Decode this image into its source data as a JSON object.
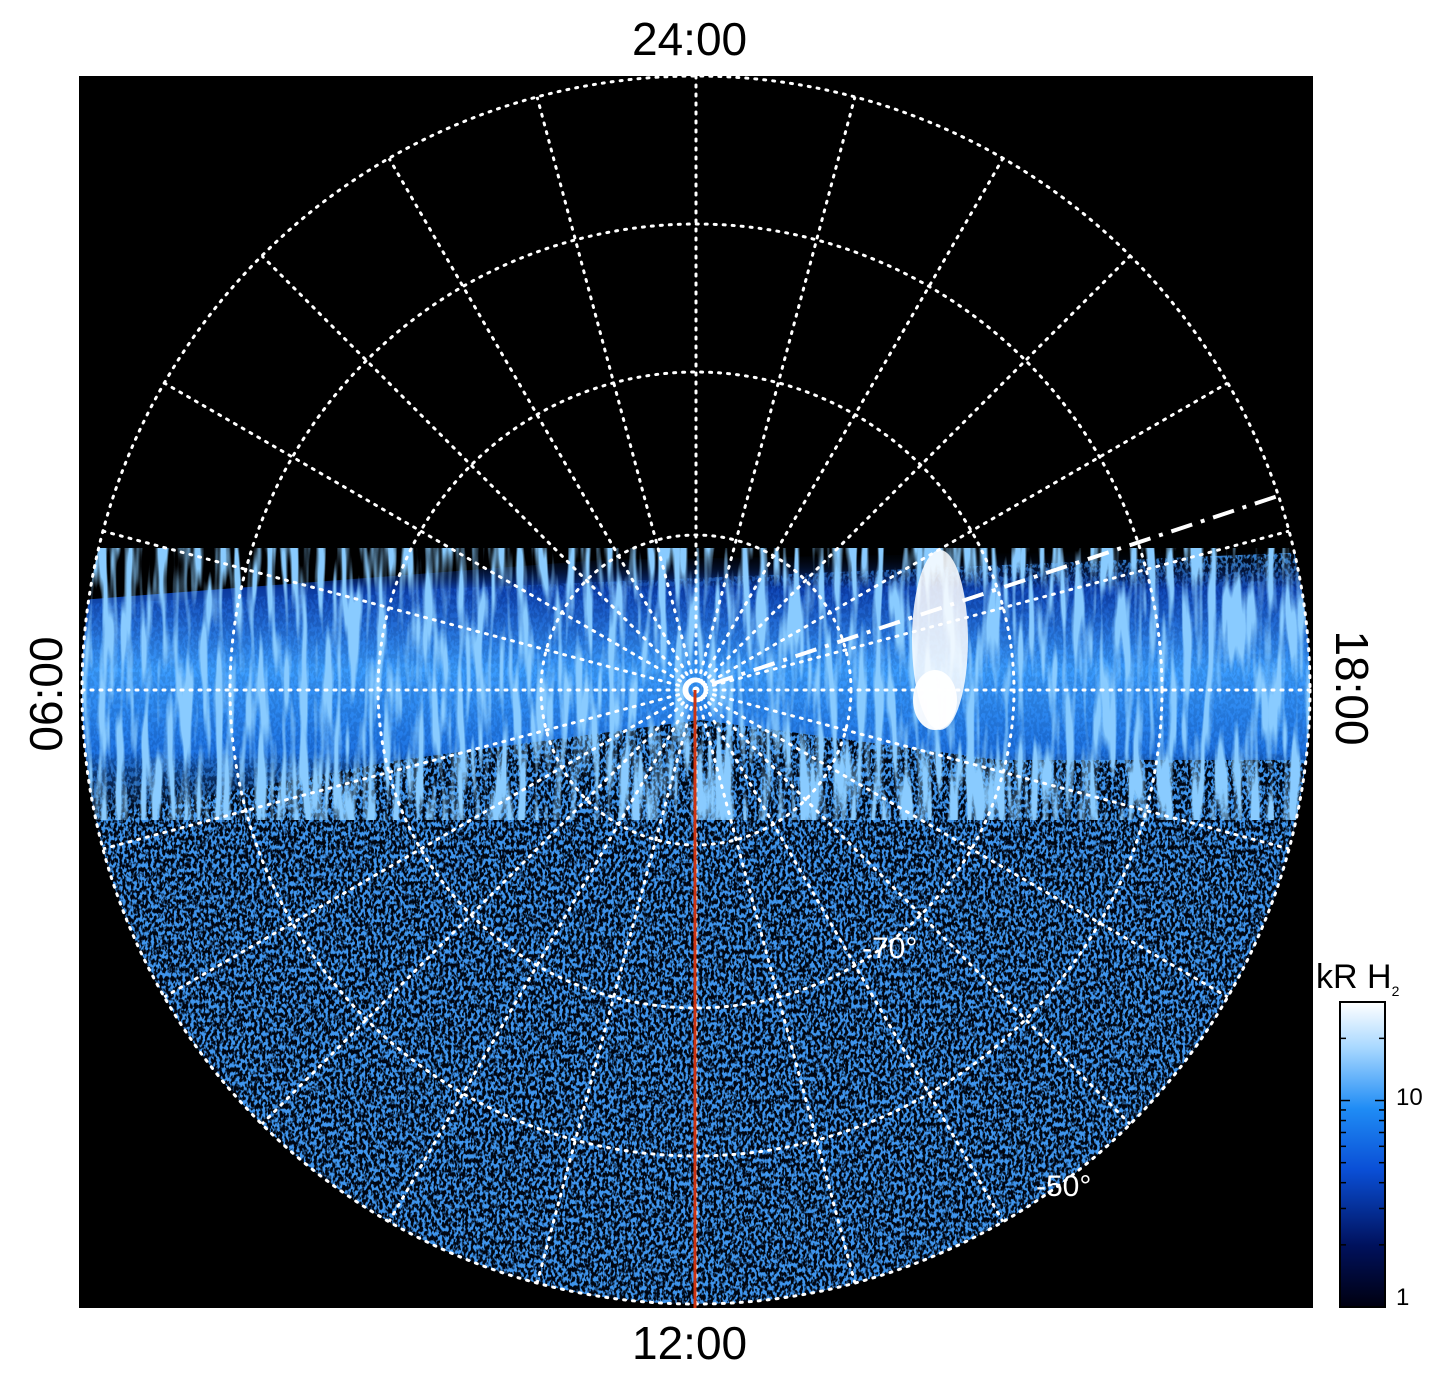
{
  "figure": {
    "local_time_labels": {
      "top": "24:00",
      "bottom": "12:00",
      "left": "06:00",
      "right": "18:00"
    },
    "latitude_labels": [
      "-70°",
      "-50°"
    ],
    "colorbar": {
      "title": "kR H",
      "title_subscript": "2",
      "ticks": [
        "10",
        "1"
      ],
      "scale": "log",
      "range": [
        1,
        30
      ],
      "colors": [
        "#000010",
        "#00115c",
        "#0a4fd6",
        "#1f8cf5",
        "#a8d8ff",
        "#ffffff"
      ]
    },
    "grid": {
      "style": "dotted",
      "color": "#ffffff",
      "local_time_spokes_hours": 24,
      "latitude_circles_deg": [
        -90,
        -80,
        -70,
        -60,
        -50,
        -40
      ]
    },
    "meridian_line_color": "#cc3311",
    "background": "#000000"
  }
}
